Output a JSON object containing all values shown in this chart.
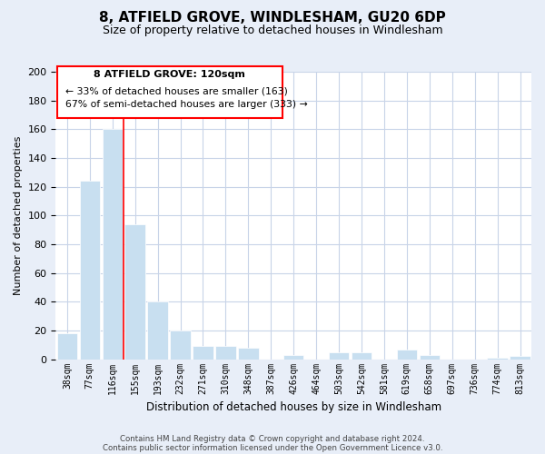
{
  "title": "8, ATFIELD GROVE, WINDLESHAM, GU20 6DP",
  "subtitle": "Size of property relative to detached houses in Windlesham",
  "xlabel": "Distribution of detached houses by size in Windlesham",
  "ylabel": "Number of detached properties",
  "bar_labels": [
    "38sqm",
    "77sqm",
    "116sqm",
    "155sqm",
    "193sqm",
    "232sqm",
    "271sqm",
    "310sqm",
    "348sqm",
    "387sqm",
    "426sqm",
    "464sqm",
    "503sqm",
    "542sqm",
    "581sqm",
    "619sqm",
    "658sqm",
    "697sqm",
    "736sqm",
    "774sqm",
    "813sqm"
  ],
  "bar_values": [
    18,
    124,
    160,
    94,
    40,
    20,
    9,
    9,
    8,
    0,
    3,
    0,
    5,
    5,
    0,
    7,
    3,
    0,
    0,
    1,
    2
  ],
  "bar_color": "#c8dff0",
  "red_line_index": 2,
  "ylim": [
    0,
    200
  ],
  "yticks": [
    0,
    20,
    40,
    60,
    80,
    100,
    120,
    140,
    160,
    180,
    200
  ],
  "annotation_title": "8 ATFIELD GROVE: 120sqm",
  "annotation_line1": "← 33% of detached houses are smaller (163)",
  "annotation_line2": "67% of semi-detached houses are larger (333) →",
  "footer1": "Contains HM Land Registry data © Crown copyright and database right 2024.",
  "footer2": "Contains public sector information licensed under the Open Government Licence v3.0.",
  "bg_color": "#e8eef8",
  "plot_bg_color": "#ffffff",
  "grid_color": "#c8d4e8"
}
